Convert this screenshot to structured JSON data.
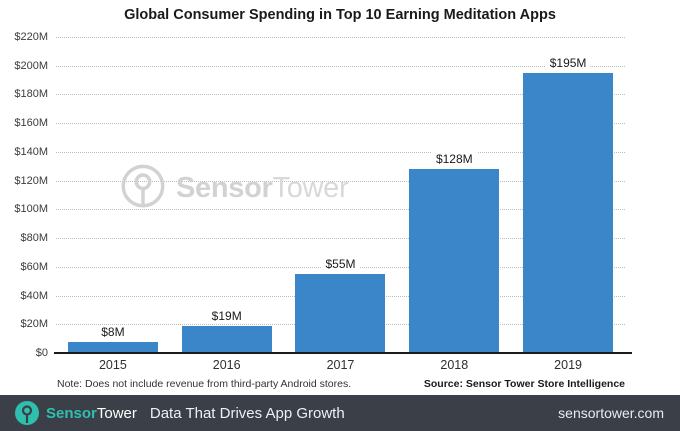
{
  "title": "Global Consumer Spending in Top 10 Earning Meditation Apps",
  "watermark": {
    "brand_bold": "Sensor",
    "brand_light": "Tower"
  },
  "chart_data": {
    "type": "bar",
    "title": "Global Consumer Spending in Top 10 Earning Meditation Apps",
    "categories": [
      "2015",
      "2016",
      "2017",
      "2018",
      "2019"
    ],
    "values": [
      8,
      19,
      55,
      128,
      195
    ],
    "value_labels": [
      "$8M",
      "$19M",
      "$55M",
      "$128M",
      "$195M"
    ],
    "xlabel": "",
    "ylabel": "",
    "ylim": [
      0,
      220
    ],
    "y_tick_step": 20,
    "y_tick_labels": [
      "$220M",
      "$200M",
      "$180M",
      "$160M",
      "$140M",
      "$120M",
      "$100M",
      "$80M",
      "$60M",
      "$40M",
      "$20M",
      "$0"
    ],
    "grid": "horizontal-dotted",
    "legend": "none",
    "bar_color": "#3a86c8"
  },
  "footnotes": {
    "note": "Note: Does not include revenue from third-party Android stores.",
    "source": "Source: Sensor Tower Store Intelligence"
  },
  "footer": {
    "brand_bold": "Sensor",
    "brand_light": "Tower",
    "tagline": "Data That Drives App Growth",
    "website": "sensortower.com"
  },
  "colors": {
    "bar": "#3a86c8",
    "footer_bg": "#3a3f48",
    "teal": "#2fbfae",
    "watermark": "#d2d2d2",
    "gridline": "#bdbdbd"
  }
}
